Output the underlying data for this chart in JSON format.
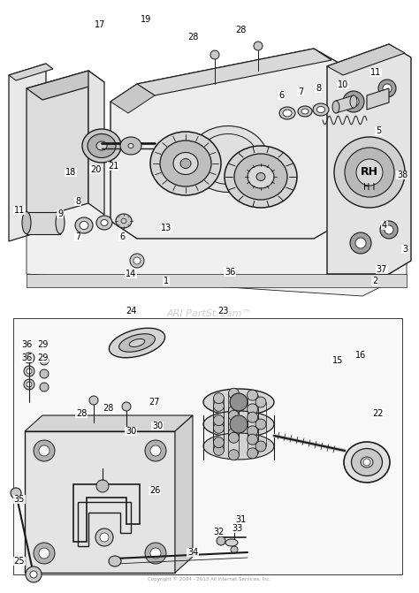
{
  "background_color": "#ffffff",
  "line_color": "#1a1a1a",
  "text_color": "#000000",
  "watermark": "ARI PartStream™",
  "copyright_text": "Copyright © 2004 - 2013 All Internet Services, Inc.",
  "font_size": 7.0,
  "figsize": [
    4.74,
    6.71
  ],
  "dpi": 100
}
